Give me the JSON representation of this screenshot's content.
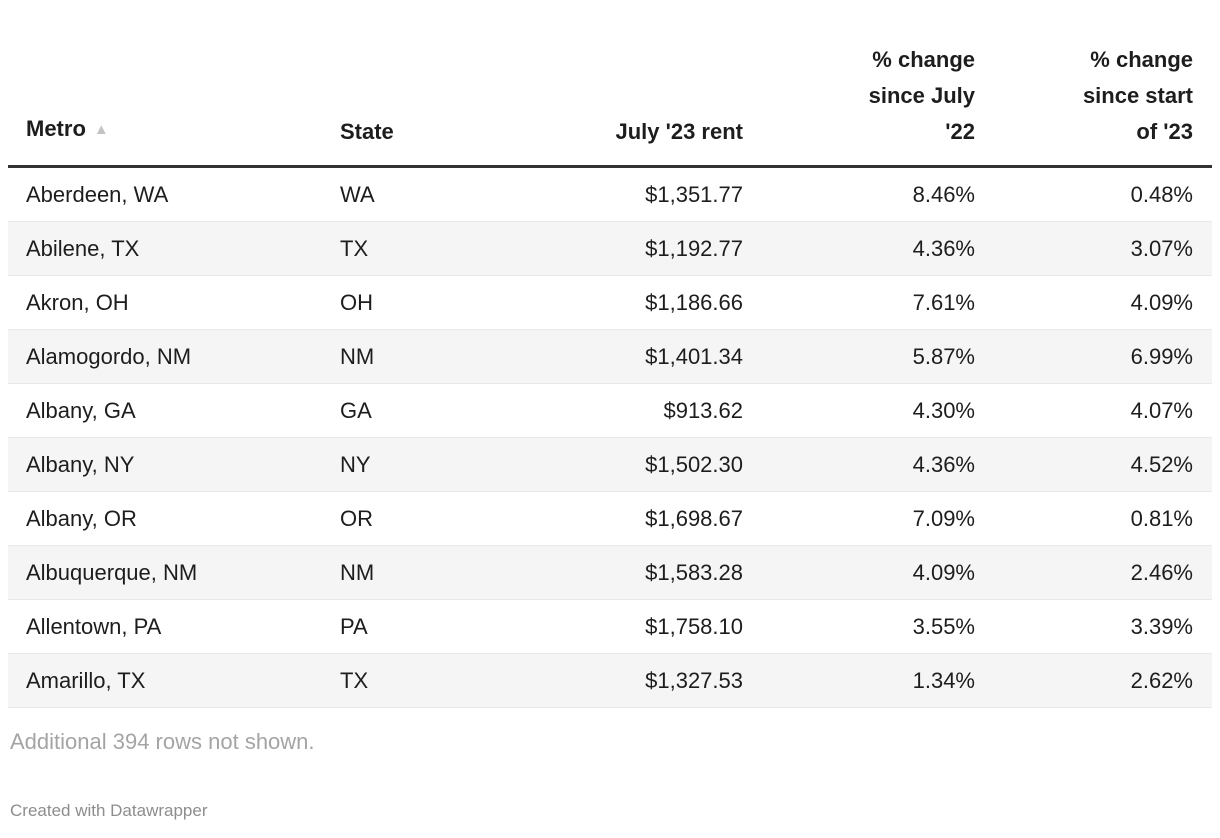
{
  "chart_data": {
    "type": "table",
    "title": "",
    "columns": [
      "Metro",
      "State",
      "July '23 rent",
      "% change since July '22",
      "% change since start of '23"
    ],
    "rows": [
      [
        "Aberdeen, WA",
        "WA",
        "$1,351.77",
        "8.46%",
        "0.48%"
      ],
      [
        "Abilene, TX",
        "TX",
        "$1,192.77",
        "4.36%",
        "3.07%"
      ],
      [
        "Akron, OH",
        "OH",
        "$1,186.66",
        "7.61%",
        "4.09%"
      ],
      [
        "Alamogordo, NM",
        "NM",
        "$1,401.34",
        "5.87%",
        "6.99%"
      ],
      [
        "Albany, GA",
        "GA",
        "$913.62",
        "4.30%",
        "4.07%"
      ],
      [
        "Albany, NY",
        "NY",
        "$1,502.30",
        "4.36%",
        "4.52%"
      ],
      [
        "Albany, OR",
        "OR",
        "$1,698.67",
        "7.09%",
        "0.81%"
      ],
      [
        "Albuquerque, NM",
        "NM",
        "$1,583.28",
        "4.09%",
        "2.46%"
      ],
      [
        "Allentown, PA",
        "PA",
        "$1,758.10",
        "3.55%",
        "3.39%"
      ],
      [
        "Amarillo, TX",
        "TX",
        "$1,327.53",
        "1.34%",
        "2.62%"
      ]
    ]
  },
  "table": {
    "headers": {
      "metro": "Metro",
      "state": "State",
      "rent": "July '23 rent",
      "change_yoy": "% change\nsince July\n'22",
      "change_ytd": "% change\nsince start\nof '23"
    },
    "sort_icon": "▲",
    "cell_names": [
      "metro",
      "state",
      "rent",
      "change-since-july-22",
      "change-since-start-of-23"
    ],
    "sorted_column": "Metro",
    "sort_direction": "ascending"
  },
  "footer": {
    "note": "Additional 394 rows not shown.",
    "credit": "Created with Datawrapper"
  },
  "colors": {
    "text": "#1d1d1d",
    "stripe": "#f5f5f5",
    "row_border": "#e8e8e8",
    "header_rule": "#333333",
    "sort_arrow": "#c3c3c3",
    "note_gray": "#a4a4a4",
    "credit_gray": "#8d8d8d"
  }
}
